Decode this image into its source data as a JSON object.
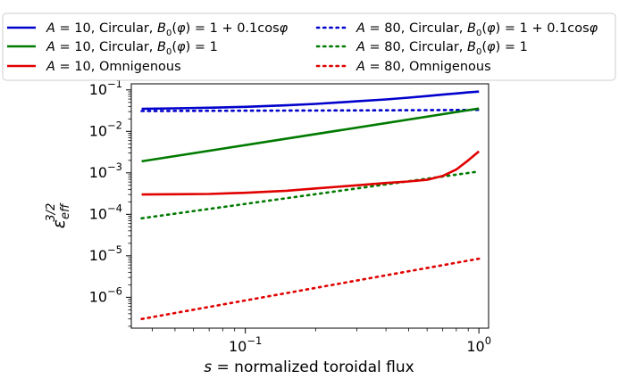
{
  "chart_data": {
    "type": "line",
    "title": "",
    "xlabel": "s = normalized toroidal flux",
    "xlabel_parts": {
      "var": "s",
      "rest": " = normalized toroidal flux"
    },
    "ylabel": "ε_eff^{3/2}",
    "ylabel_parts": {
      "base": "ε",
      "sub": "eff",
      "sup": "3/2"
    },
    "xscale": "log",
    "yscale": "log",
    "xlim": [
      0.0325,
      1.1
    ],
    "ylim": [
      1.8e-07,
      0.14
    ],
    "grid": false,
    "legend_position": "top",
    "x_ticks": [
      {
        "value": 0.1,
        "base": "10",
        "exp": "−1"
      },
      {
        "value": 1.0,
        "base": "10",
        "exp": "0"
      }
    ],
    "y_ticks": [
      {
        "value": 1e-06,
        "base": "10",
        "exp": "−6"
      },
      {
        "value": 1e-05,
        "base": "10",
        "exp": "−5"
      },
      {
        "value": 0.0001,
        "base": "10",
        "exp": "−4"
      },
      {
        "value": 0.001,
        "base": "10",
        "exp": "−3"
      },
      {
        "value": 0.01,
        "base": "10",
        "exp": "−2"
      },
      {
        "value": 0.1,
        "base": "10",
        "exp": "−1"
      }
    ],
    "series": [
      {
        "name": "A = 10, Circular, B0(φ) = 1 + 0.1cosφ",
        "label_parts": {
          "aspect": "10",
          "config": "Circular, ",
          "field": " = 1 + 0.1cos",
          "has_field": true,
          "has_phi_tail": true
        },
        "color": "#0000cc",
        "dash": "solid",
        "x": [
          0.036,
          0.05,
          0.07,
          0.1,
          0.15,
          0.2,
          0.3,
          0.4,
          0.5,
          0.6,
          0.7,
          0.8,
          0.9,
          1.0
        ],
        "y": [
          0.035,
          0.0358,
          0.0372,
          0.039,
          0.0425,
          0.046,
          0.053,
          0.059,
          0.065,
          0.071,
          0.077,
          0.082,
          0.087,
          0.091
        ]
      },
      {
        "name": "A = 80, Circular, B0(φ) = 1 + 0.1cosφ",
        "label_parts": {
          "aspect": "80",
          "config": "Circular, ",
          "field": " = 1 + 0.1cos",
          "has_field": true,
          "has_phi_tail": true
        },
        "color": "#0000cc",
        "dash": "dotted",
        "x": [
          0.036,
          0.1,
          0.3,
          0.6,
          1.0
        ],
        "y": [
          0.031,
          0.0315,
          0.032,
          0.0325,
          0.033
        ]
      },
      {
        "name": "A = 10, Circular, B0(φ) = 1",
        "label_parts": {
          "aspect": "10",
          "config": "Circular, ",
          "field": " = 1",
          "has_field": true,
          "has_phi_tail": false
        },
        "color": "#007a00",
        "dash": "solid",
        "x": [
          0.036,
          1.0
        ],
        "y": [
          0.0019,
          0.0355
        ]
      },
      {
        "name": "A = 80, Circular, B0(φ) = 1",
        "label_parts": {
          "aspect": "80",
          "config": "Circular, ",
          "field": " = 1",
          "has_field": true,
          "has_phi_tail": false
        },
        "color": "#007a00",
        "dash": "dotted",
        "x": [
          0.036,
          1.0
        ],
        "y": [
          8e-05,
          0.00108
        ]
      },
      {
        "name": "A = 10, Omnigenous",
        "label_parts": {
          "aspect": "10",
          "config": "Omnigenous",
          "field": "",
          "has_field": false,
          "has_phi_tail": false
        },
        "color": "#e00000",
        "dash": "solid",
        "x": [
          0.036,
          0.05,
          0.07,
          0.1,
          0.15,
          0.2,
          0.3,
          0.4,
          0.5,
          0.6,
          0.7,
          0.8,
          0.9,
          1.0
        ],
        "y": [
          0.0003,
          0.000305,
          0.00031,
          0.00033,
          0.00037,
          0.00042,
          0.0005,
          0.00057,
          0.00062,
          0.00068,
          0.00084,
          0.0012,
          0.002,
          0.0033
        ]
      },
      {
        "name": "A = 80, Omnigenous",
        "label_parts": {
          "aspect": "80",
          "config": "Omnigenous",
          "field": "",
          "has_field": false,
          "has_phi_tail": false
        },
        "color": "#e00000",
        "dash": "dotted",
        "x": [
          0.036,
          1.0
        ],
        "y": [
          3e-07,
          8.5e-06
        ]
      }
    ]
  }
}
